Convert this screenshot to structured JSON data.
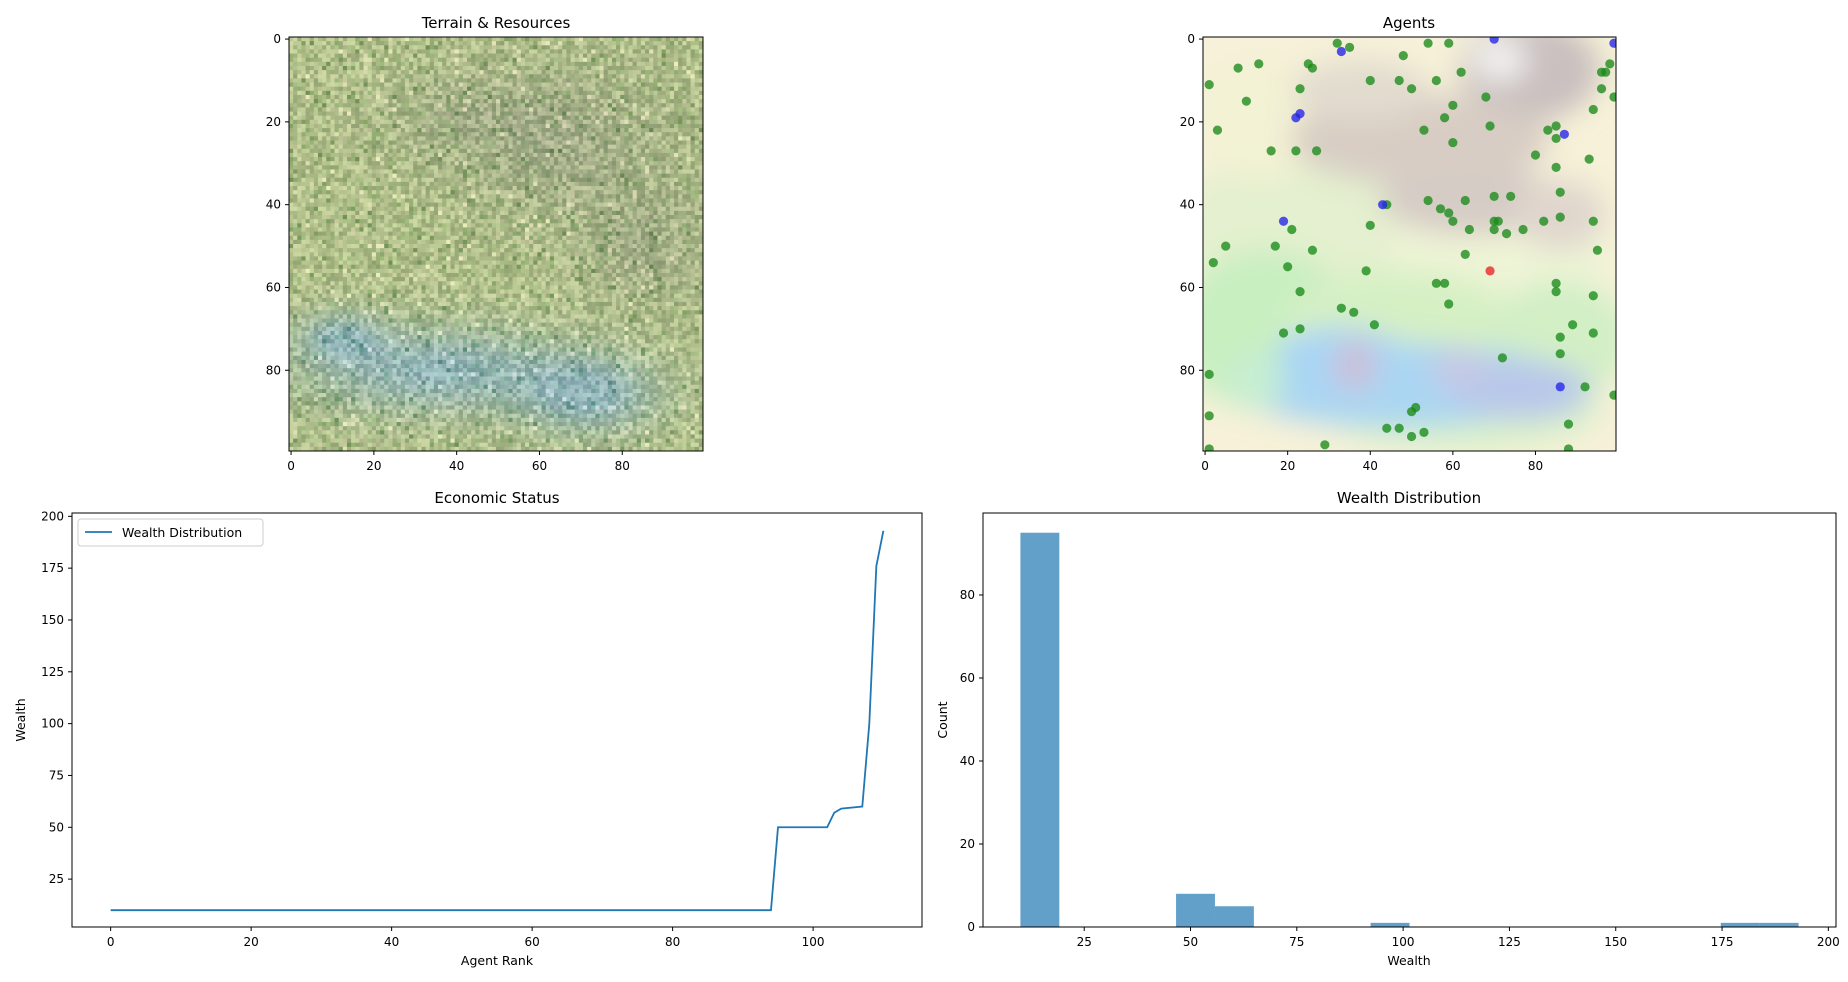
{
  "chart_data": [
    {
      "type": "heatmap",
      "title": "Terrain & Resources",
      "xlabel": "",
      "ylabel": "",
      "xlim": [
        0,
        99
      ],
      "ylim": [
        99,
        0
      ],
      "xticks": [
        0,
        20,
        40,
        60,
        80
      ],
      "yticks": [
        0,
        20,
        40,
        60,
        80
      ],
      "grid": false,
      "description_colors": [
        "#b9c39a",
        "#9cbf87",
        "#8fa88a",
        "#8fb3b8",
        "#a7b49b"
      ]
    },
    {
      "type": "scatter",
      "title": "Agents",
      "xlabel": "",
      "ylabel": "",
      "xlim": [
        0,
        99
      ],
      "ylim": [
        99,
        0
      ],
      "xticks": [
        0,
        20,
        40,
        60,
        80
      ],
      "yticks": [
        0,
        20,
        40,
        60,
        80
      ],
      "grid": false,
      "background": "terrain heatmap",
      "series": [
        {
          "color": "#1a8a1a",
          "points": [
            [
              1,
              11
            ],
            [
              2,
              54
            ],
            [
              3,
              22
            ],
            [
              5,
              50
            ],
            [
              8,
              7
            ],
            [
              10,
              15
            ],
            [
              13,
              6
            ],
            [
              16,
              27
            ],
            [
              17,
              50
            ],
            [
              20,
              55
            ],
            [
              21,
              46
            ],
            [
              22,
              27
            ],
            [
              23,
              12
            ],
            [
              23,
              61
            ],
            [
              23,
              70
            ],
            [
              19,
              71
            ],
            [
              25,
              6
            ],
            [
              26,
              7
            ],
            [
              26,
              51
            ],
            [
              27,
              27
            ],
            [
              32,
              1
            ],
            [
              35,
              2
            ],
            [
              33,
              65
            ],
            [
              36,
              66
            ],
            [
              39,
              56
            ],
            [
              40,
              10
            ],
            [
              40,
              45
            ],
            [
              41,
              69
            ],
            [
              44,
              40
            ],
            [
              44,
              94
            ],
            [
              47,
              10
            ],
            [
              47,
              94
            ],
            [
              48,
              4
            ],
            [
              50,
              12
            ],
            [
              50,
              90
            ],
            [
              50,
              96
            ],
            [
              51,
              89
            ],
            [
              53,
              22
            ],
            [
              53,
              95
            ],
            [
              54,
              1
            ],
            [
              54,
              39
            ],
            [
              56,
              10
            ],
            [
              56,
              59
            ],
            [
              57,
              41
            ],
            [
              58,
              19
            ],
            [
              58,
              59
            ],
            [
              59,
              1
            ],
            [
              59,
              42
            ],
            [
              59,
              64
            ],
            [
              60,
              16
            ],
            [
              60,
              25
            ],
            [
              60,
              44
            ],
            [
              62,
              8
            ],
            [
              63,
              39
            ],
            [
              63,
              52
            ],
            [
              64,
              46
            ],
            [
              68,
              14
            ],
            [
              69,
              21
            ],
            [
              70,
              38
            ],
            [
              70,
              44
            ],
            [
              70,
              46
            ],
            [
              71,
              44
            ],
            [
              72,
              77
            ],
            [
              73,
              47
            ],
            [
              74,
              38
            ],
            [
              77,
              46
            ],
            [
              80,
              28
            ],
            [
              82,
              44
            ],
            [
              83,
              22
            ],
            [
              85,
              21
            ],
            [
              85,
              24
            ],
            [
              85,
              31
            ],
            [
              85,
              59
            ],
            [
              85,
              61
            ],
            [
              86,
              37
            ],
            [
              86,
              43
            ],
            [
              86,
              72
            ],
            [
              86,
              76
            ],
            [
              88,
              93
            ],
            [
              89,
              69
            ],
            [
              92,
              84
            ],
            [
              93,
              29
            ],
            [
              94,
              17
            ],
            [
              94,
              44
            ],
            [
              94,
              62
            ],
            [
              94,
              71
            ],
            [
              95,
              51
            ],
            [
              96,
              12
            ],
            [
              96,
              8
            ],
            [
              97,
              8
            ],
            [
              98,
              6
            ],
            [
              99,
              14
            ],
            [
              99,
              86
            ],
            [
              1,
              81
            ],
            [
              1,
              91
            ],
            [
              1,
              99
            ],
            [
              29,
              98
            ],
            [
              88,
              99
            ]
          ]
        },
        {
          "color": "#2222e8",
          "points": [
            [
              33,
              3
            ],
            [
              70,
              0
            ],
            [
              99,
              1
            ],
            [
              22,
              19
            ],
            [
              23,
              18
            ],
            [
              87,
              23
            ],
            [
              19,
              44
            ],
            [
              43,
              40
            ],
            [
              86,
              84
            ]
          ]
        },
        {
          "color": "#e82222",
          "points": [
            [
              69,
              56
            ]
          ]
        }
      ]
    },
    {
      "type": "line",
      "title": "Economic Status",
      "xlabel": "Agent Rank",
      "ylabel": "Wealth",
      "xlim": [
        -5.5,
        115.5
      ],
      "ylim": [
        1.9,
        201.6
      ],
      "xticks": [
        0,
        20,
        40,
        60,
        80,
        100
      ],
      "yticks": [
        25,
        50,
        75,
        100,
        125,
        150,
        175,
        200
      ],
      "legend": "top-left",
      "grid": false,
      "series": [
        {
          "name": "Wealth Distribution",
          "color": "#1f77b4",
          "x": [
            0,
            94,
            95,
            102,
            103,
            104,
            107,
            108,
            109,
            110
          ],
          "y": [
            10,
            10,
            50,
            50,
            57,
            59,
            60,
            100,
            176,
            193
          ]
        }
      ]
    },
    {
      "type": "bar",
      "subtype": "histogram",
      "title": "Wealth Distribution",
      "xlabel": "Wealth",
      "ylabel": "Count",
      "xlim": [
        1.2,
        201.8
      ],
      "ylim": [
        0,
        99.75
      ],
      "xticks": [
        25,
        50,
        75,
        100,
        125,
        150,
        175,
        200
      ],
      "yticks": [
        0,
        20,
        40,
        60,
        80
      ],
      "grid": false,
      "color": "#1f77b4",
      "bin_edges": [
        10,
        19.15,
        28.3,
        37.45,
        46.6,
        55.75,
        64.9,
        74.05,
        83.2,
        92.35,
        101.5,
        110.65,
        119.8,
        128.95,
        138.1,
        147.25,
        156.4,
        165.55,
        174.7,
        183.85,
        193
      ],
      "counts": [
        95,
        0,
        0,
        0,
        8,
        5,
        0,
        0,
        0,
        1,
        0,
        0,
        0,
        0,
        0,
        0,
        0,
        0,
        1,
        1
      ]
    }
  ]
}
